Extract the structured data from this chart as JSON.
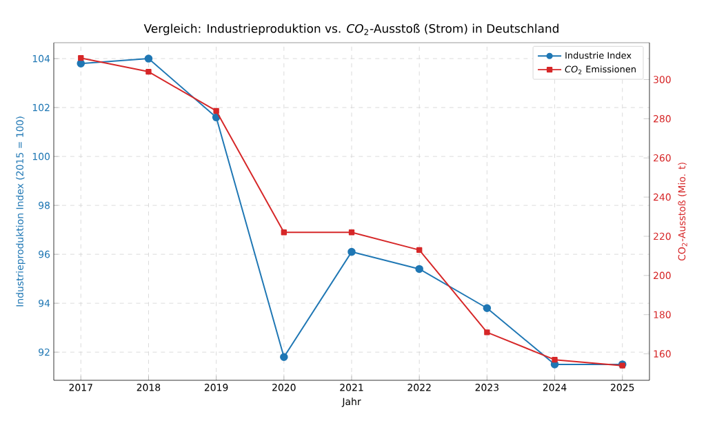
{
  "chart_data": {
    "type": "line",
    "title": "Vergleich: Industrieproduktion vs. *CO*$_{2}$-Ausstoß (Strom) in Deutschland",
    "xlabel": "Jahr",
    "ylabel": "Industrieproduktion Index (2015 = 100)",
    "y2label": "CO$_{2}$-Ausstoß (Mio. t)",
    "x": [
      2017,
      2018,
      2019,
      2020,
      2021,
      2022,
      2023,
      2024,
      2025
    ],
    "series": [
      {
        "name": "Industrie Index",
        "color": "#1f77b4",
        "marker": "circle",
        "values": [
          103.8,
          104.0,
          101.6,
          91.8,
          96.1,
          95.4,
          93.8,
          91.5,
          91.5
        ]
      },
      {
        "name": "*CO*$_{2}$ Emissionen",
        "color": "#d62728",
        "marker": "square",
        "axis": "y2",
        "values": [
          311,
          304,
          284,
          222,
          222,
          213,
          171,
          157,
          154
        ]
      }
    ],
    "xlim": [
      2016.6,
      2025.4
    ],
    "xticks": [
      2017,
      2018,
      2019,
      2020,
      2021,
      2022,
      2023,
      2024,
      2025
    ],
    "ylim": [
      90.85,
      104.65
    ],
    "yticks": [
      92,
      94,
      96,
      98,
      100,
      102,
      104
    ],
    "y2lim": [
      146.5,
      318.8
    ],
    "y2ticks": [
      160,
      180,
      200,
      220,
      240,
      260,
      280,
      300
    ],
    "grid": true,
    "legend": "top right",
    "line_style": "solid"
  }
}
